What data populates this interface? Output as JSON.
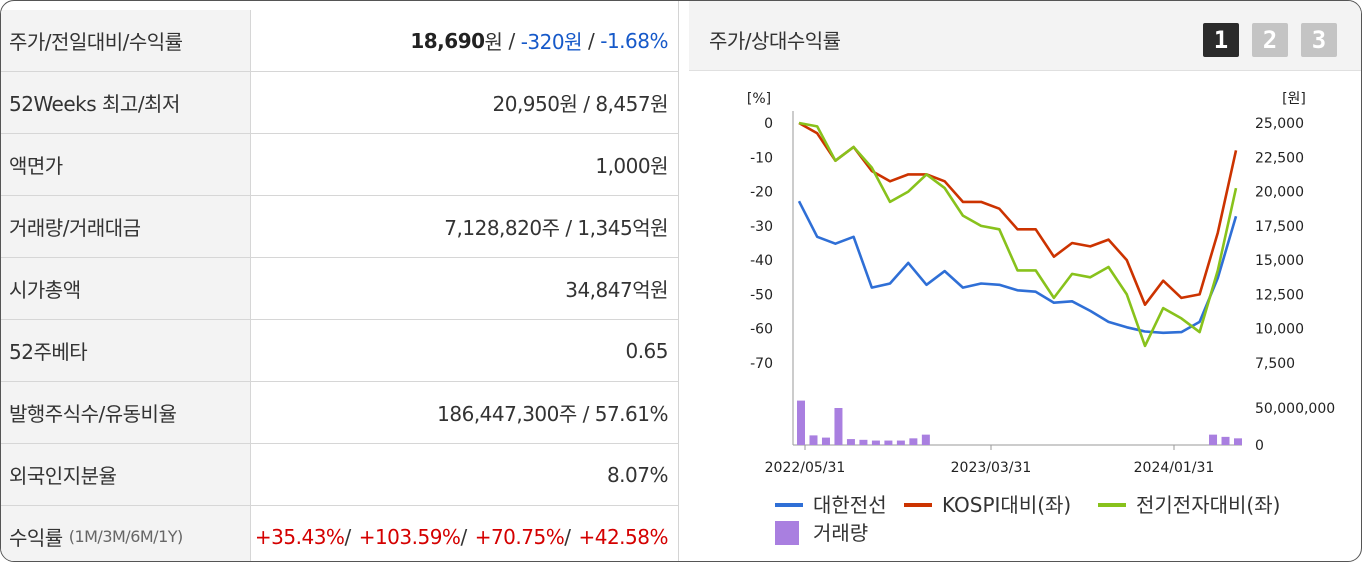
{
  "rows": [
    {
      "label": "주가/전일대비/수익률"
    },
    {
      "label": "52Weeks 최고/최저",
      "value": "20,950원 / 8,457원"
    },
    {
      "label": "액면가",
      "value": "1,000원"
    },
    {
      "label": "거래량/거래대금",
      "value": "7,128,820주 / 1,345억원"
    },
    {
      "label": "시가총액",
      "value": "34,847억원"
    },
    {
      "label": "52주베타",
      "value": "0.65"
    },
    {
      "label": "발행주식수/유동비율",
      "value": "186,447,300주 / 57.61%"
    },
    {
      "label": "외국인지분율",
      "value": "8.07%"
    },
    {
      "label": "수익률",
      "sublabel": "(1M/3M/6M/1Y)"
    }
  ],
  "price": {
    "current": "18,690",
    "unit": "원",
    "change": "-320원",
    "rate": "-1.68%"
  },
  "returns": [
    "+35.43%",
    "+103.59%",
    "+70.75%",
    "+42.58%"
  ],
  "panel": {
    "title": "주가/상대수익률",
    "buttons": [
      "1",
      "2",
      "3"
    ]
  },
  "colors": {
    "company": "#2f6fd6",
    "kospi": "#cc3300",
    "sector": "#88c21c",
    "volume": "#a97fe0",
    "negative": "#1659c9",
    "positive": "#d40000"
  },
  "chart_data": {
    "type": "line",
    "left_axis": {
      "unit": "[%]",
      "ticks": [
        "0",
        "-10",
        "-20",
        "-30",
        "-40",
        "-50",
        "-60",
        "-70"
      ],
      "range": [
        -70,
        0
      ]
    },
    "right_axis": {
      "unit": "[원]",
      "ticks": [
        "25,000",
        "22,500",
        "20,000",
        "17,500",
        "15,000",
        "12,500",
        "10,000",
        "7,500"
      ],
      "range": [
        7500,
        25000
      ]
    },
    "volume_axis": {
      "ticks": [
        "50,000,000",
        "0"
      ],
      "range": [
        0,
        50000000
      ]
    },
    "x_ticks": [
      "2022/05/31",
      "2023/03/31",
      "2024/01/31"
    ],
    "series": [
      {
        "name": "대한전선",
        "axis": "right",
        "values": [
          19300,
          16700,
          16200,
          16700,
          13000,
          13300,
          14800,
          13200,
          14200,
          13000,
          13300,
          13200,
          12800,
          12700,
          11900,
          12000,
          11300,
          10500,
          10100,
          9800,
          9700,
          9750,
          10500,
          13700,
          18200
        ]
      },
      {
        "name": "KOSPI대비(좌)",
        "axis": "left",
        "values": [
          0,
          -3,
          -11,
          -7,
          -14,
          -17,
          -15,
          -15,
          -17,
          -23,
          -23,
          -25,
          -31,
          -31,
          -39,
          -35,
          -36,
          -34,
          -40,
          -53,
          -46,
          -51,
          -50,
          -32,
          -8
        ]
      },
      {
        "name": "전기전자대비(좌)",
        "axis": "left",
        "values": [
          0,
          -1,
          -11,
          -7,
          -13,
          -23,
          -20,
          -15,
          -19,
          -27,
          -30,
          -31,
          -43,
          -43,
          -51,
          -44,
          -45,
          -42,
          -50,
          -65,
          -54,
          -57,
          -61,
          -43,
          -19
        ]
      }
    ],
    "volume": {
      "name": "거래량",
      "values": [
        60000000,
        13000000,
        10000000,
        50000000,
        8000000,
        7000000,
        6000000,
        6000000,
        6000000,
        9000000,
        14000000,
        0,
        0,
        0,
        0,
        0,
        0,
        0,
        0,
        0,
        0,
        0,
        0,
        0,
        0,
        0,
        0,
        0,
        0,
        0,
        0,
        0,
        0,
        14000000,
        11000000,
        9000000
      ]
    }
  }
}
